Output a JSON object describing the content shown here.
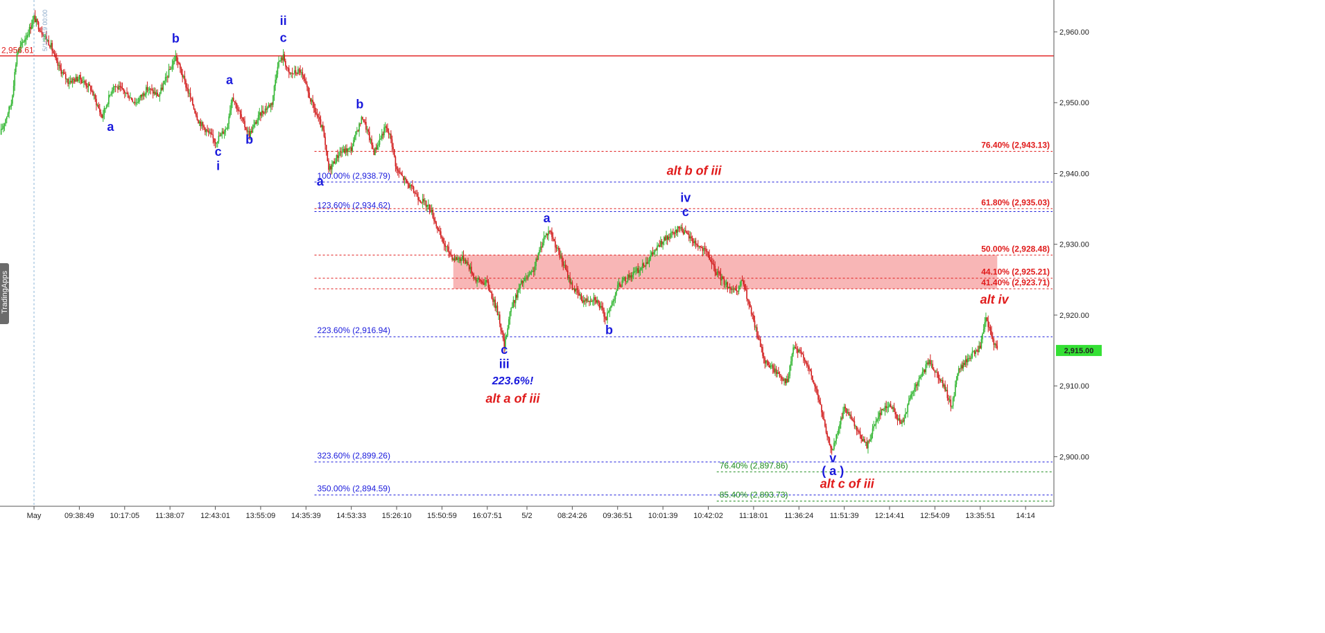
{
  "chart_data": {
    "type": "candlestick",
    "instrument_last_price": "2,915.00",
    "price_axis": {
      "ylim": [
        2893.0,
        2964.5
      ],
      "tick_values": [
        2960,
        2950,
        2940,
        2930,
        2920,
        2910,
        2900
      ],
      "tick_labels": [
        "2,960.00",
        "2,950.00",
        "2,940.00",
        "2,930.00",
        "2,920.00",
        "2,910.00",
        "2,900.00"
      ]
    },
    "time_axis": {
      "ticks": [
        {
          "label": "May",
          "t": 6
        },
        {
          "label": "09:38:49",
          "t": 14
        },
        {
          "label": "10:17:05",
          "t": 22
        },
        {
          "label": "11:38:07",
          "t": 30
        },
        {
          "label": "12:43:01",
          "t": 38
        },
        {
          "label": "13:55:09",
          "t": 46
        },
        {
          "label": "14:35:39",
          "t": 54
        },
        {
          "label": "14:53:33",
          "t": 62
        },
        {
          "label": "15:26:10",
          "t": 70
        },
        {
          "label": "15:50:59",
          "t": 78
        },
        {
          "label": "16:07:51",
          "t": 86
        },
        {
          "label": "5/2",
          "t": 93
        },
        {
          "label": "08:24:26",
          "t": 101
        },
        {
          "label": "09:36:51",
          "t": 109
        },
        {
          "label": "10:01:39",
          "t": 117
        },
        {
          "label": "10:42:02",
          "t": 125
        },
        {
          "label": "11:18:01",
          "t": 133
        },
        {
          "label": "11:36:24",
          "t": 141
        },
        {
          "label": "11:51:39",
          "t": 149
        },
        {
          "label": "12:14:41",
          "t": 157
        },
        {
          "label": "12:54:09",
          "t": 165
        },
        {
          "label": "13:35:51",
          "t": 173
        },
        {
          "label": "14:14",
          "t": 181
        }
      ],
      "t_range": [
        0,
        186
      ]
    },
    "price_path": [
      [
        0,
        2945.5
      ],
      [
        2,
        2950
      ],
      [
        3,
        2957
      ],
      [
        5,
        2960
      ],
      [
        6,
        2962
      ],
      [
        7,
        2960.5
      ],
      [
        9,
        2958
      ],
      [
        10,
        2955.5
      ],
      [
        12,
        2953
      ],
      [
        14,
        2953.5
      ],
      [
        16,
        2952
      ],
      [
        18,
        2948
      ],
      [
        20,
        2952.5
      ],
      [
        22,
        2951.5
      ],
      [
        24,
        2950
      ],
      [
        26,
        2952
      ],
      [
        28,
        2951
      ],
      [
        31,
        2956.5
      ],
      [
        33,
        2952
      ],
      [
        35,
        2947.5
      ],
      [
        37,
        2945.5
      ],
      [
        38,
        2944.5
      ],
      [
        40,
        2946.5
      ],
      [
        41,
        2951
      ],
      [
        43,
        2947
      ],
      [
        44,
        2945.5
      ],
      [
        46,
        2948.5
      ],
      [
        48,
        2950
      ],
      [
        49,
        2955.5
      ],
      [
        50,
        2956.5
      ],
      [
        51,
        2954
      ],
      [
        53,
        2954.5
      ],
      [
        55,
        2950
      ],
      [
        57,
        2946
      ],
      [
        58,
        2940.5
      ],
      [
        60,
        2943
      ],
      [
        62,
        2943.5
      ],
      [
        63,
        2946
      ],
      [
        64,
        2948
      ],
      [
        66,
        2943
      ],
      [
        68,
        2946.5
      ],
      [
        69,
        2945
      ],
      [
        70,
        2940.5
      ],
      [
        72,
        2938.5
      ],
      [
        74,
        2936.5
      ],
      [
        76,
        2935
      ],
      [
        78,
        2930.5
      ],
      [
        80,
        2928
      ],
      [
        82,
        2928
      ],
      [
        84,
        2925
      ],
      [
        86,
        2924.5
      ],
      [
        88,
        2920
      ],
      [
        89,
        2915.5
      ],
      [
        90,
        2920.5
      ],
      [
        92,
        2924.5
      ],
      [
        94,
        2926
      ],
      [
        96,
        2931
      ],
      [
        97,
        2932
      ],
      [
        99,
        2928
      ],
      [
        101,
        2924
      ],
      [
        103,
        2922
      ],
      [
        105,
        2922.5
      ],
      [
        107,
        2919.5
      ],
      [
        109,
        2924
      ],
      [
        111,
        2925.5
      ],
      [
        113,
        2926.5
      ],
      [
        115,
        2928.5
      ],
      [
        117,
        2930.5
      ],
      [
        119,
        2931.5
      ],
      [
        120,
        2932.5
      ],
      [
        121,
        2931.5
      ],
      [
        123,
        2930
      ],
      [
        125,
        2928.5
      ],
      [
        126,
        2926.5
      ],
      [
        128,
        2924.5
      ],
      [
        130,
        2923
      ],
      [
        131,
        2925
      ],
      [
        133,
        2919
      ],
      [
        135,
        2913.5
      ],
      [
        137,
        2912
      ],
      [
        139,
        2910.5
      ],
      [
        140,
        2915.5
      ],
      [
        142,
        2914
      ],
      [
        144,
        2909.5
      ],
      [
        145,
        2906.5
      ],
      [
        146,
        2902.5
      ],
      [
        147,
        2901
      ],
      [
        148,
        2904
      ],
      [
        149,
        2907
      ],
      [
        151,
        2904
      ],
      [
        153,
        2901.5
      ],
      [
        155,
        2906
      ],
      [
        157,
        2907.5
      ],
      [
        159,
        2904.5
      ],
      [
        161,
        2909
      ],
      [
        163,
        2912
      ],
      [
        164,
        2913.5
      ],
      [
        166,
        2911
      ],
      [
        168,
        2907
      ],
      [
        169,
        2912
      ],
      [
        171,
        2914
      ],
      [
        173,
        2915.5
      ],
      [
        174,
        2919.5
      ],
      [
        175,
        2917
      ],
      [
        176,
        2915
      ]
    ],
    "fib_lines": [
      {
        "label": "100.00% (2,938.79)",
        "value": 2938.79,
        "color": "#1a1adc"
      },
      {
        "label": "123.60% (2,934.62)",
        "value": 2934.62,
        "color": "#1a1adc"
      },
      {
        "label": "223.60% (2,916.94)",
        "value": 2916.94,
        "color": "#1a1adc"
      },
      {
        "label": "323.60% (2,899.26)",
        "value": 2899.26,
        "color": "#1a1adc"
      },
      {
        "label": "350.00% (2,894.59)",
        "value": 2894.59,
        "color": "#1a1adc"
      }
    ],
    "retrace_lines": [
      {
        "label": "76.40% (2,943.13)",
        "value": 2943.13,
        "color": "#e01a1a"
      },
      {
        "label": "61.80% (2,935.03)",
        "value": 2935.03,
        "color": "#e01a1a"
      },
      {
        "label": "50.00% (2,928.48)",
        "value": 2928.48,
        "color": "#e01a1a"
      },
      {
        "label": "44.10% (2,925.21)",
        "value": 2925.21,
        "color": "#e01a1a"
      },
      {
        "label": "41.40% (2,923.71)",
        "value": 2923.71,
        "color": "#e01a1a"
      }
    ],
    "green_lines": [
      {
        "label": "76.40% (2,897.86)",
        "value": 2897.86,
        "color": "#1a8a1a"
      },
      {
        "label": "85.40% (2,893.73)",
        "value": 2893.73,
        "color": "#1a8a1a"
      }
    ],
    "resistance_line": {
      "label": "2,956.61",
      "value": 2956.61,
      "color": "#e01a1a"
    },
    "highlight_zone": {
      "from": 2923.71,
      "to": 2928.48,
      "t_start": 80,
      "t_end": 176,
      "color": "#f7a9a9"
    },
    "wave_labels": [
      {
        "text": "b",
        "t": 31,
        "price": 2958.5
      },
      {
        "text": "ii",
        "t": 50,
        "price": 2961
      },
      {
        "text": "c",
        "t": 50,
        "price": 2958.6
      },
      {
        "text": "a",
        "t": 19.5,
        "price": 2946
      },
      {
        "text": "a",
        "t": 40.5,
        "price": 2952.6
      },
      {
        "text": "c",
        "t": 38.5,
        "price": 2942.5
      },
      {
        "text": "i",
        "t": 38.5,
        "price": 2940.5
      },
      {
        "text": "b",
        "t": 44,
        "price": 2944.2
      },
      {
        "text": "b",
        "t": 63.5,
        "price": 2949.2
      },
      {
        "text": "a",
        "t": 56.5,
        "price": 2938.3
      },
      {
        "text": "a",
        "t": 96.5,
        "price": 2933.1
      },
      {
        "text": "iv",
        "t": 121,
        "price": 2936
      },
      {
        "text": "c",
        "t": 121,
        "price": 2934
      },
      {
        "text": "b",
        "t": 107.5,
        "price": 2917.3
      },
      {
        "text": "c",
        "t": 89,
        "price": 2914.5
      },
      {
        "text": "iii",
        "t": 89,
        "price": 2912.5
      },
      {
        "text": "v",
        "t": 147,
        "price": 2899.2
      },
      {
        "text": "( a )",
        "t": 147,
        "price": 2897.4
      }
    ],
    "notes": [
      {
        "text": "alt b of iii",
        "t": 122.5,
        "price": 2939.8,
        "style": "red"
      },
      {
        "text": "alt iv",
        "t": 175.5,
        "price": 2921.6,
        "style": "red"
      },
      {
        "text": "223.6%!",
        "t": 90.5,
        "price": 2910.2,
        "style": "blue"
      },
      {
        "text": "alt a of iii",
        "t": 90.5,
        "price": 2907.6,
        "style": "red"
      },
      {
        "text": "alt c of iii",
        "t": 149.5,
        "price": 2895.6,
        "style": "red"
      }
    ]
  },
  "vendor_tab": "TradingApps",
  "date_stamp": "5/1/2019 00:00"
}
